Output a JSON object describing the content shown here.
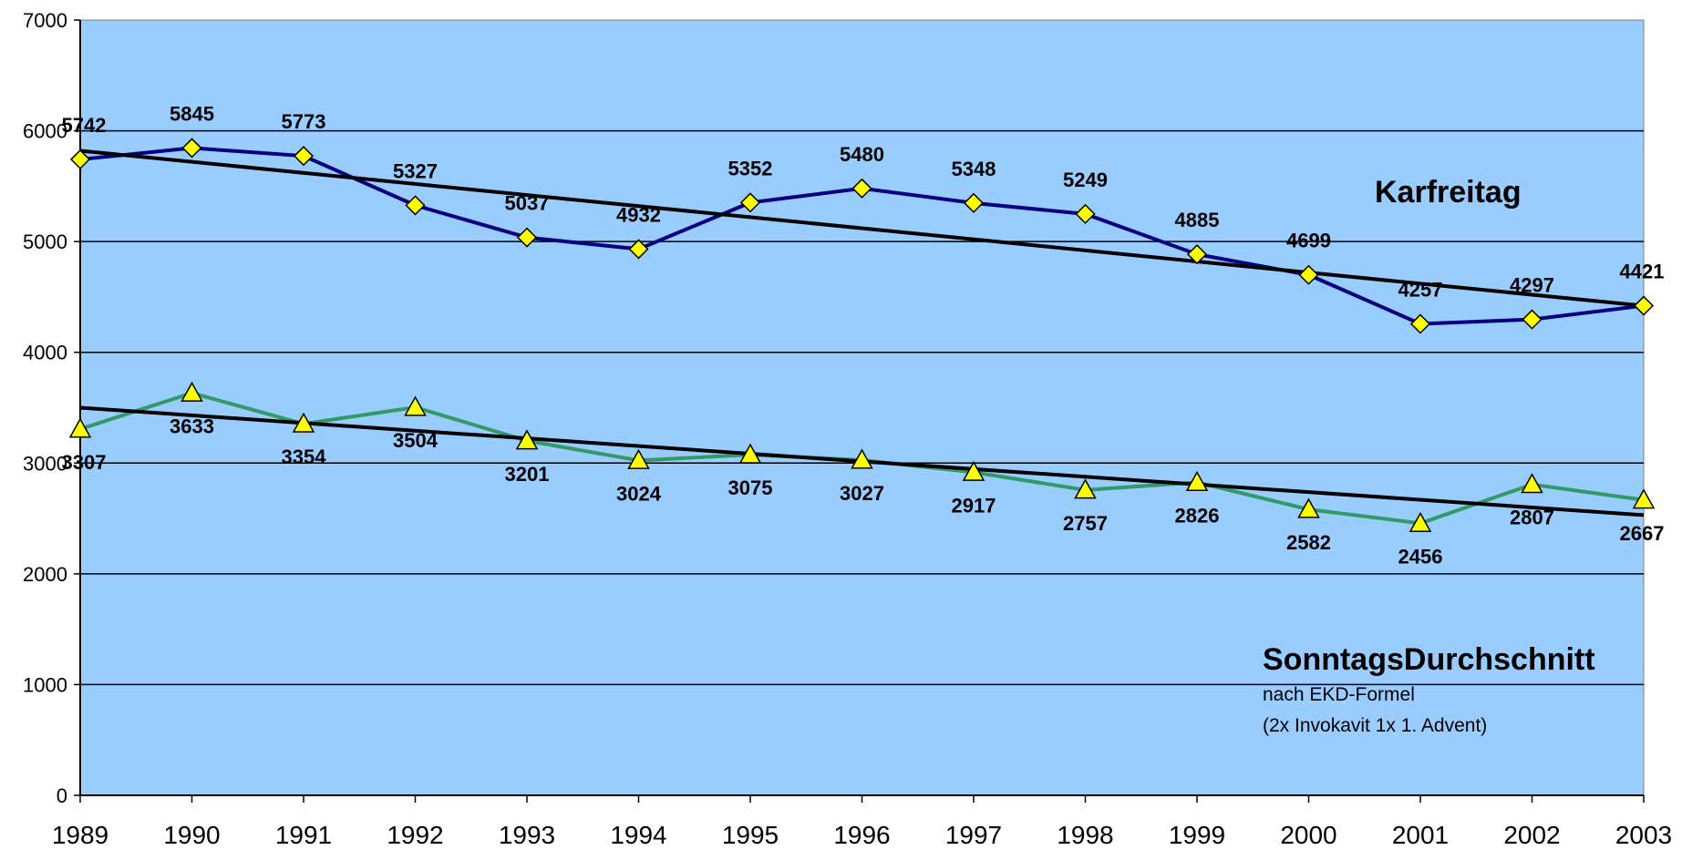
{
  "chart_data": {
    "type": "line",
    "title": "",
    "xlabel": "",
    "ylabel": "",
    "x": [
      "1989",
      "1990",
      "1991",
      "1992",
      "1993",
      "1994",
      "1995",
      "1996",
      "1997",
      "1998",
      "1999",
      "2000",
      "2001",
      "2002",
      "2003"
    ],
    "ylim": [
      0,
      7000
    ],
    "yticks": [
      "0",
      "1000",
      "2000",
      "3000",
      "4000",
      "5000",
      "6000",
      "7000"
    ],
    "grid": true,
    "plot_background": "#99CCFF",
    "series": [
      {
        "name": "Karfreitag",
        "values": [
          5742,
          5845,
          5773,
          5327,
          5037,
          4932,
          5352,
          5480,
          5348,
          5249,
          4885,
          4699,
          4257,
          4297,
          4421
        ],
        "labels": [
          "5742",
          "5845",
          "5773",
          "5327",
          "5037",
          "4932",
          "5352",
          "5480",
          "5348",
          "5249",
          "4885",
          "4699",
          "4257",
          "4297",
          "4421"
        ],
        "color": "#000080",
        "marker": "diamond",
        "marker_color": "#FFFF00",
        "trendline": {
          "start": 5820,
          "end": 4420,
          "color": "#000000"
        }
      },
      {
        "name": "SonntagsDurchschnitt",
        "values": [
          3307,
          3633,
          3354,
          3504,
          3201,
          3024,
          3075,
          3027,
          2917,
          2757,
          2826,
          2582,
          2456,
          2807,
          2667
        ],
        "labels": [
          "3307",
          "3633",
          "3354",
          "3504",
          "3201",
          "3024",
          "3075",
          "3027",
          "2917",
          "2757",
          "2826",
          "2582",
          "2456",
          "2807",
          "2667"
        ],
        "color": "#339966",
        "marker": "triangle",
        "marker_color": "#FFFF00",
        "trendline": {
          "start": 3500,
          "end": 2530,
          "color": "#000000"
        }
      }
    ],
    "annotations": {
      "karfreitag": "Karfreitag",
      "sonntag_title": "SonntagsDurchschnitt",
      "sonntag_line1": "nach EKD-Formel",
      "sonntag_line2": "(2x Invokavit 1x 1. Advent)"
    }
  }
}
